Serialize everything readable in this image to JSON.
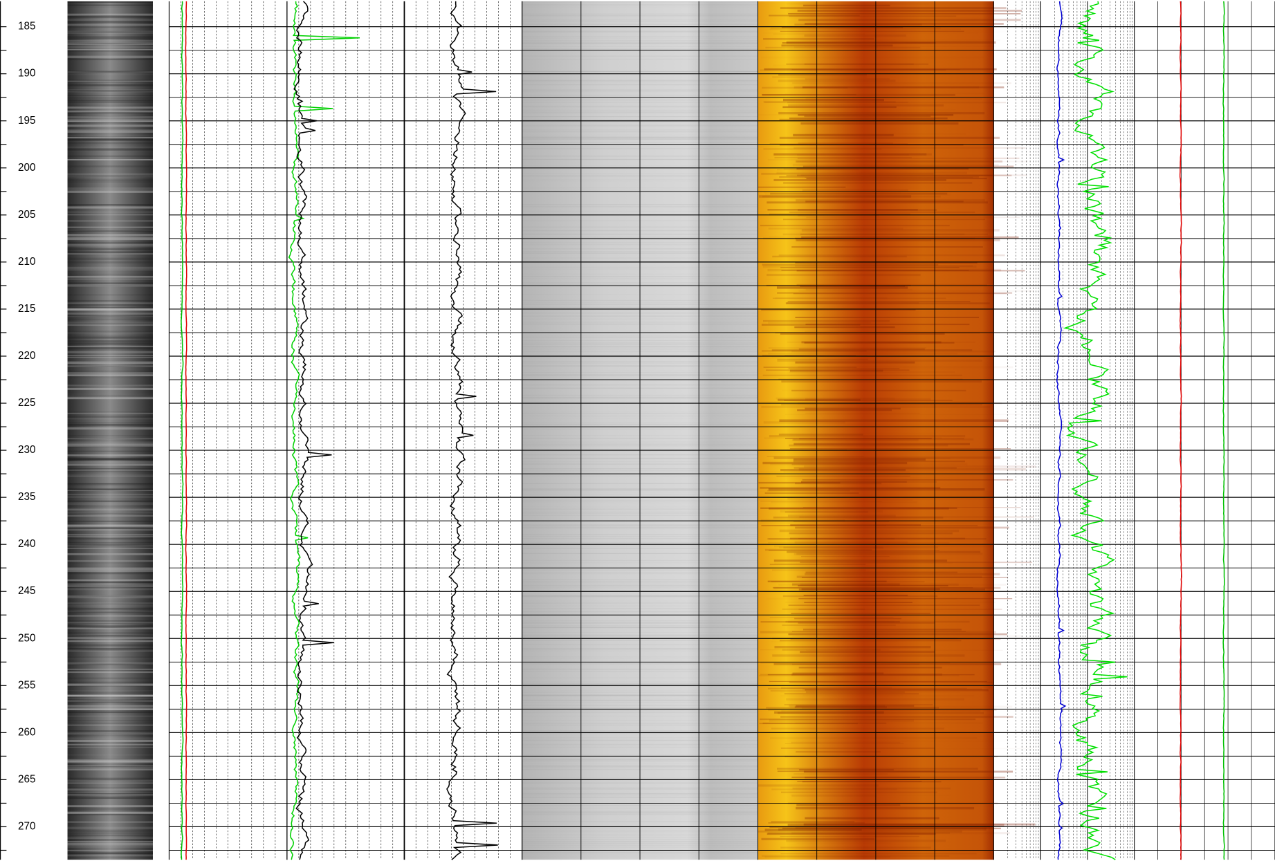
{
  "chart_data": {
    "type": "well-log",
    "ylim": [
      182.3,
      273.5
    ],
    "yticks": [
      185,
      190,
      195,
      200,
      205,
      210,
      215,
      220,
      225,
      230,
      235,
      240,
      245,
      250,
      255,
      260,
      265,
      270
    ],
    "minor_yticks": [
      187.5,
      192.5,
      197.5,
      202.5,
      207.5,
      212.5,
      217.5,
      222.5,
      227.5,
      232.5,
      237.5,
      242.5,
      247.5,
      252.5,
      257.5,
      262.5,
      267.5,
      272.5
    ],
    "grid": true
  }
}
